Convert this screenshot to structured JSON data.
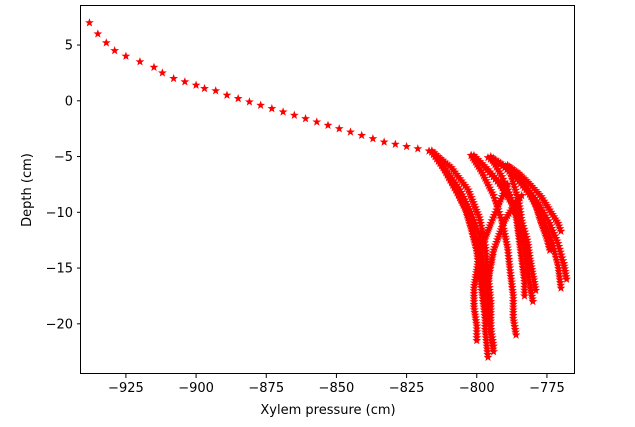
{
  "chart_data": {
    "type": "scatter",
    "title": "",
    "xlabel": "Xylem pressure (cm)",
    "ylabel": "Depth (cm)",
    "xlim": [
      -941,
      -765
    ],
    "ylim": [
      -24.5,
      8.5
    ],
    "xticks": [
      -925,
      -900,
      -875,
      -850,
      -825,
      -800,
      -775
    ],
    "xtick_labels": [
      "−925",
      "−900",
      "−875",
      "−850",
      "−825",
      "−800",
      "−775"
    ],
    "yticks": [
      5,
      0,
      -5,
      -10,
      -15,
      -20
    ],
    "ytick_labels": [
      "5",
      "0",
      "−5",
      "−10",
      "−15",
      "−20"
    ],
    "grid": false,
    "legend": "none",
    "marker": "star",
    "marker_color": "#ff0000",
    "series": [
      {
        "x": [
          -938,
          -935,
          -932,
          -929,
          -925,
          -920,
          -915,
          -912,
          -908,
          -904,
          -900,
          -897,
          -893,
          -889,
          -885,
          -881,
          -877,
          -873,
          -869,
          -865,
          -861,
          -857,
          -853,
          -849,
          -845,
          -841,
          -837,
          -833,
          -829,
          -825,
          -821,
          -817
        ],
        "y": [
          7.0,
          6.0,
          5.2,
          4.5,
          4.0,
          3.5,
          3.0,
          2.5,
          2.0,
          1.7,
          1.4,
          1.1,
          0.9,
          0.5,
          0.2,
          -0.1,
          -0.4,
          -0.7,
          -1.0,
          -1.3,
          -1.6,
          -1.9,
          -2.2,
          -2.5,
          -2.8,
          -3.1,
          -3.4,
          -3.7,
          -3.9,
          -4.1,
          -4.3,
          -4.5
        ]
      },
      {
        "x": [
          -816,
          -813,
          -810,
          -807,
          -804,
          -802,
          -800,
          -799,
          -798,
          -797
        ],
        "y": [
          -4.5,
          -5.5,
          -6.8,
          -8.2,
          -9.8,
          -11.5,
          -13.5,
          -15.5,
          -17.5,
          -19.5
        ]
      },
      {
        "x": [
          -816,
          -812,
          -808,
          -804,
          -801,
          -799,
          -798,
          -797,
          -797,
          -796
        ],
        "y": [
          -4.6,
          -6.0,
          -7.8,
          -9.6,
          -11.5,
          -13.6,
          -15.8,
          -18.0,
          -20.5,
          -23.0
        ]
      },
      {
        "x": [
          -816,
          -811,
          -806,
          -802,
          -799,
          -798,
          -797,
          -796,
          -795,
          -794
        ],
        "y": [
          -4.6,
          -6.2,
          -8.0,
          -10.0,
          -12.0,
          -14.2,
          -16.4,
          -18.6,
          -20.8,
          -22.5
        ]
      },
      {
        "x": [
          -816,
          -809,
          -803,
          -799,
          -797,
          -796,
          -795,
          -795,
          -794
        ],
        "y": [
          -4.5,
          -6.0,
          -8.0,
          -10.5,
          -13.0,
          -15.5,
          -18.0,
          -20.5,
          -22.0
        ]
      },
      {
        "x": [
          -801,
          -796,
          -791,
          -787,
          -784,
          -782,
          -781,
          -780,
          -779
        ],
        "y": [
          -4.9,
          -6.2,
          -7.6,
          -9.2,
          -10.8,
          -12.5,
          -14.2,
          -15.6,
          -17.0
        ]
      },
      {
        "x": [
          -802,
          -797,
          -792,
          -788,
          -785,
          -783,
          -782,
          -781,
          -780
        ],
        "y": [
          -4.9,
          -6.0,
          -7.4,
          -9.0,
          -10.8,
          -12.8,
          -14.8,
          -16.6,
          -18.0
        ]
      },
      {
        "x": [
          -802,
          -798,
          -794,
          -791,
          -789,
          -788,
          -787,
          -787,
          -786
        ],
        "y": [
          -4.9,
          -6.5,
          -8.5,
          -10.8,
          -13.2,
          -15.5,
          -17.5,
          -19.5,
          -21.0
        ]
      },
      {
        "x": [
          -795,
          -791,
          -788,
          -786,
          -785,
          -784,
          -783,
          -783
        ],
        "y": [
          -5.1,
          -6.8,
          -8.5,
          -10.3,
          -12.2,
          -14.2,
          -16.2,
          -17.5
        ]
      },
      {
        "x": [
          -795,
          -789,
          -783,
          -778,
          -774,
          -771,
          -769,
          -768
        ],
        "y": [
          -5.0,
          -6.0,
          -7.5,
          -9.2,
          -11.0,
          -12.8,
          -14.6,
          -16.0
        ]
      },
      {
        "x": [
          -796,
          -790,
          -785,
          -780,
          -776,
          -773,
          -771,
          -770
        ],
        "y": [
          -5.1,
          -6.0,
          -7.2,
          -8.8,
          -10.8,
          -12.8,
          -14.8,
          -16.8
        ]
      },
      {
        "x": [
          -789,
          -785,
          -781,
          -777,
          -774,
          -771,
          -770
        ],
        "y": [
          -5.8,
          -6.5,
          -7.5,
          -8.6,
          -9.8,
          -11.0,
          -11.7
        ]
      },
      {
        "x": [
          -789,
          -785,
          -782,
          -779,
          -777,
          -775,
          -774
        ],
        "y": [
          -5.8,
          -6.7,
          -7.9,
          -9.4,
          -11.0,
          -12.4,
          -13.4
        ]
      },
      {
        "x": [
          -789,
          -787,
          -785,
          -784,
          -783,
          -782
        ],
        "y": [
          -5.8,
          -7.3,
          -9.0,
          -10.8,
          -12.5,
          -13.7
        ]
      },
      {
        "x": [
          -789,
          -791,
          -793,
          -795,
          -797,
          -799,
          -800,
          -801,
          -801,
          -800,
          -800
        ],
        "y": [
          -7.5,
          -8.6,
          -9.8,
          -11.0,
          -12.3,
          -13.6,
          -15.2,
          -16.8,
          -18.5,
          -20.2,
          -21.5
        ]
      },
      {
        "x": [
          -784,
          -787,
          -790,
          -792,
          -794,
          -795,
          -796,
          -796
        ],
        "y": [
          -8.5,
          -9.5,
          -10.7,
          -12.0,
          -13.4,
          -14.8,
          -16.3,
          -17.5
        ]
      }
    ]
  }
}
